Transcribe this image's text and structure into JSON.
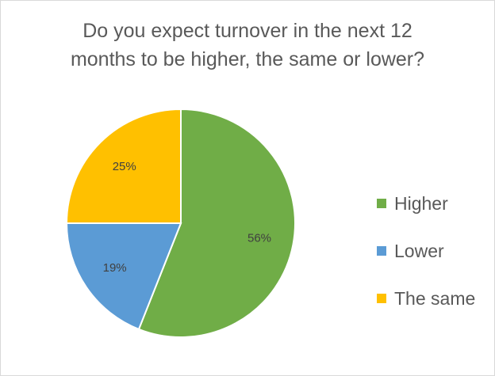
{
  "chart_data": {
    "type": "pie",
    "title": [
      "Do you expect turnover in the next 12",
      "months to be higher, the same or lower?"
    ],
    "categories": [
      "Higher",
      "Lower",
      "The same"
    ],
    "values": [
      56,
      19,
      25
    ],
    "data_labels": [
      "56%",
      "19%",
      "25%"
    ],
    "colors": [
      "#70ad47",
      "#5b9bd5",
      "#ffc000"
    ],
    "start_angle_deg": 0,
    "direction": "clockwise",
    "legend": {
      "position": "right",
      "entries": [
        "Higher",
        "Lower",
        "The same"
      ]
    }
  }
}
